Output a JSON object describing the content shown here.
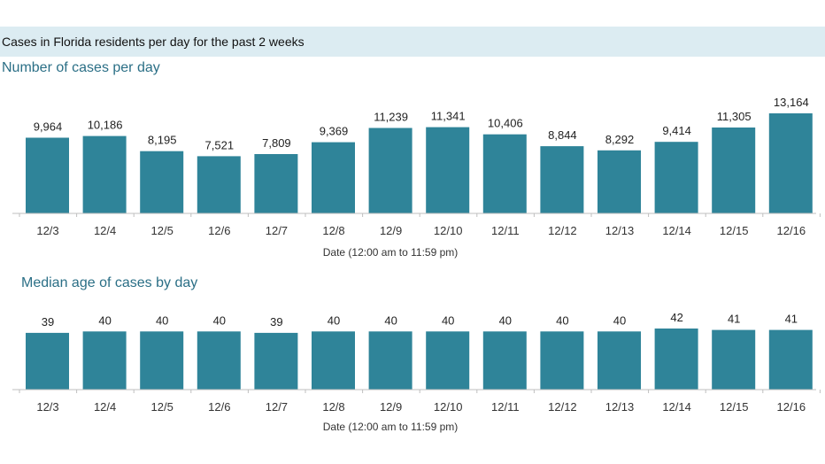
{
  "banner": {
    "title": "Cases in Florida residents per day for the past 2 weeks"
  },
  "colors": {
    "bar": "#2f8499",
    "baseline": "#bfbfbf",
    "banner_bg": "#dcecf2",
    "title": "#2b6f86"
  },
  "chart_data": [
    {
      "type": "bar",
      "title": "Number of cases per day",
      "xlabel": "Date (12:00 am to 11:59 pm)",
      "ylabel": "",
      "categories": [
        "12/3",
        "12/4",
        "12/5",
        "12/6",
        "12/7",
        "12/8",
        "12/9",
        "12/10",
        "12/11",
        "12/12",
        "12/13",
        "12/14",
        "12/15",
        "12/16"
      ],
      "values": [
        9964,
        10186,
        8195,
        7521,
        7809,
        9369,
        11239,
        11341,
        10406,
        8844,
        8292,
        9414,
        11305,
        13164
      ],
      "value_labels": [
        "9,964",
        "10,186",
        "8,195",
        "7,521",
        "7,809",
        "9,369",
        "11,239",
        "11,341",
        "10,406",
        "8,844",
        "8,292",
        "9,414",
        "11,305",
        "13,164"
      ],
      "ylim": [
        0,
        13164
      ],
      "grid": false
    },
    {
      "type": "bar",
      "title": "Median age of cases by day",
      "xlabel": "Date (12:00 am to 11:59 pm)",
      "ylabel": "",
      "categories": [
        "12/3",
        "12/4",
        "12/5",
        "12/6",
        "12/7",
        "12/8",
        "12/9",
        "12/10",
        "12/11",
        "12/12",
        "12/13",
        "12/14",
        "12/15",
        "12/16"
      ],
      "values": [
        39,
        40,
        40,
        40,
        39,
        40,
        40,
        40,
        40,
        40,
        40,
        42,
        41,
        41
      ],
      "value_labels": [
        "39",
        "40",
        "40",
        "40",
        "39",
        "40",
        "40",
        "40",
        "40",
        "40",
        "40",
        "42",
        "41",
        "41"
      ],
      "ylim": [
        0,
        42
      ],
      "grid": false
    }
  ]
}
